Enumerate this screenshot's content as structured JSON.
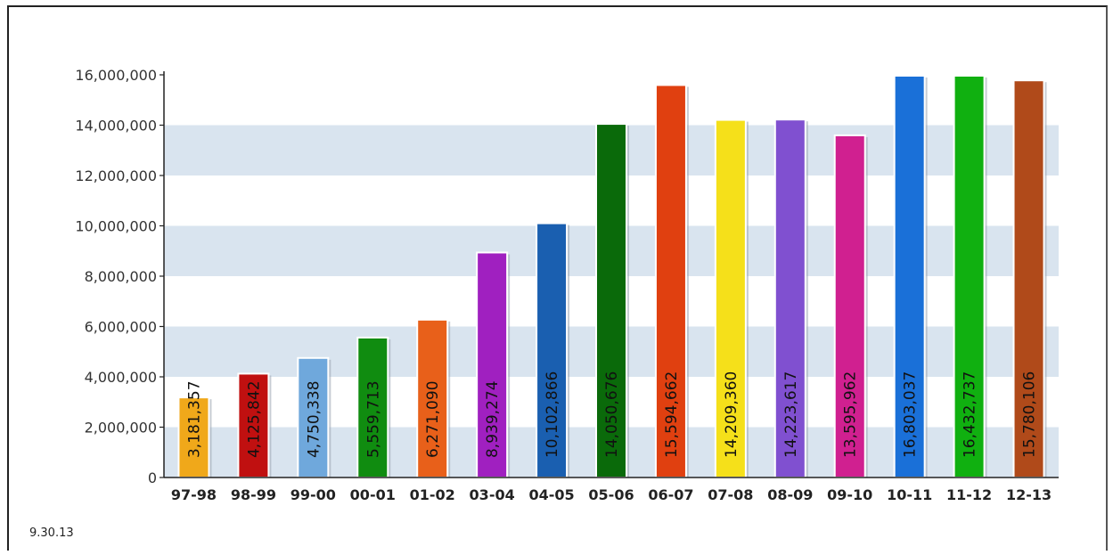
{
  "chart_data": {
    "type": "bar",
    "categories": [
      "97-98",
      "98-99",
      "99-00",
      "00-01",
      "01-02",
      "03-04",
      "04-05",
      "05-06",
      "06-07",
      "07-08",
      "08-09",
      "09-10",
      "10-11",
      "11-12",
      "12-13"
    ],
    "values": [
      3181357,
      4125842,
      4750338,
      5559713,
      6271090,
      8939274,
      10102866,
      14050676,
      15594662,
      14209360,
      14223617,
      13595962,
      16803037,
      16432737,
      15780106
    ],
    "value_labels": [
      "3,181,357",
      "4,125,842",
      "4,750,338",
      "5,559,713",
      "6,271,090",
      "8,939,274",
      "10,102,866",
      "14,050,676",
      "15,594,662",
      "14,209,360",
      "14,223,617",
      "13,595,962",
      "16,803,037",
      "16,432,737",
      "15,780,106"
    ],
    "colors": [
      "#f0a81a",
      "#c01010",
      "#6fa8dc",
      "#108c10",
      "#e8601a",
      "#a020c0",
      "#1a5fb0",
      "#0a6a0a",
      "#e04010",
      "#f5e01a",
      "#8050d0",
      "#d02090",
      "#1a70d8",
      "#10b010",
      "#b04a1a"
    ],
    "ylim": [
      0,
      16000000
    ],
    "yticks": [
      "0",
      "2,000,000",
      "4,000,000",
      "6,000,000",
      "8,000,000",
      "10,000,000",
      "12,000,000",
      "14,000,000",
      "16,000,000"
    ],
    "ytick_values": [
      0,
      2000000,
      4000000,
      6000000,
      8000000,
      10000000,
      12000000,
      14000000,
      16000000
    ],
    "grid": "alternating horizontal bands",
    "band_color": "#d9e4ef"
  },
  "footnote": "9.30.13"
}
